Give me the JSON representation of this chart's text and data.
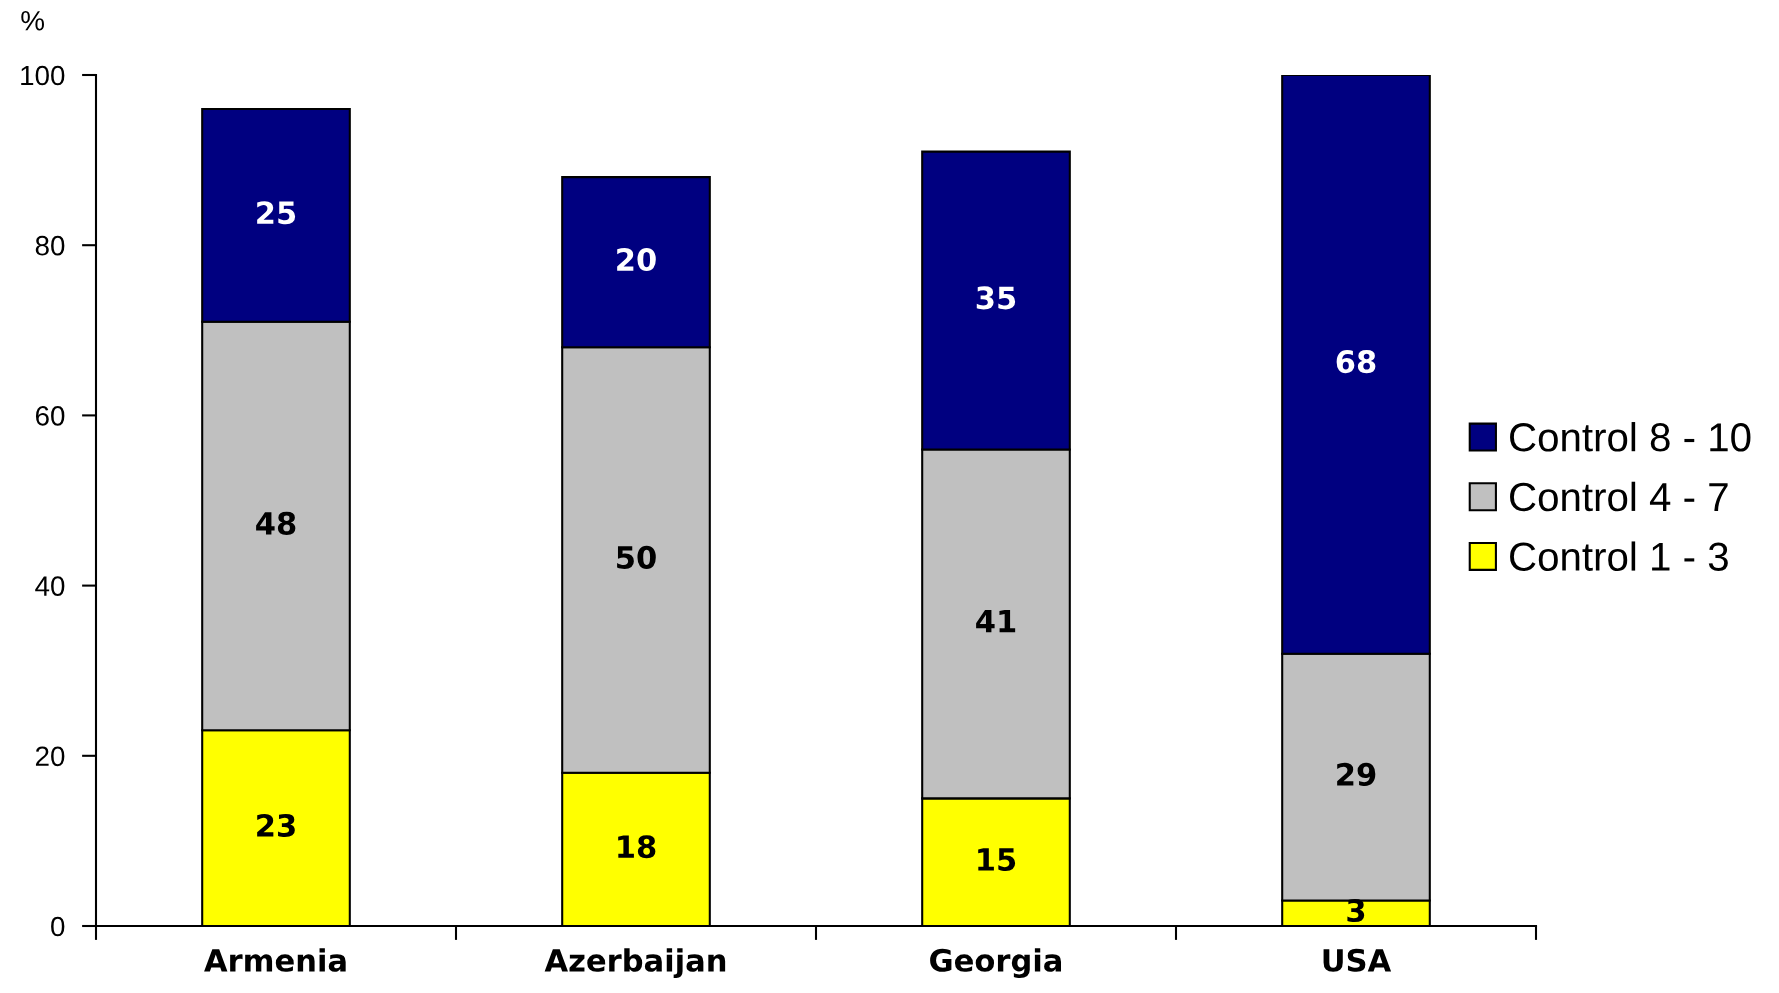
{
  "chart_data": {
    "type": "bar",
    "ylabel": "%",
    "categories": [
      "Armenia",
      "Azerbaijan",
      "Georgia",
      "USA"
    ],
    "series": [
      {
        "name": "Control 1 - 3",
        "color": "#ffff00",
        "values": [
          23,
          18,
          15,
          3
        ]
      },
      {
        "name": "Control 4 - 7",
        "color": "#c0c0c0",
        "values": [
          48,
          50,
          41,
          29
        ]
      },
      {
        "name": "Control 8 - 10",
        "color": "#000080",
        "values": [
          25,
          20,
          35,
          68
        ]
      }
    ],
    "stacked": true,
    "ylim": [
      0,
      100
    ],
    "yticks": [
      0,
      20,
      40,
      60,
      80,
      100
    ],
    "data_labels": true,
    "legend": "right",
    "grid": false
  }
}
